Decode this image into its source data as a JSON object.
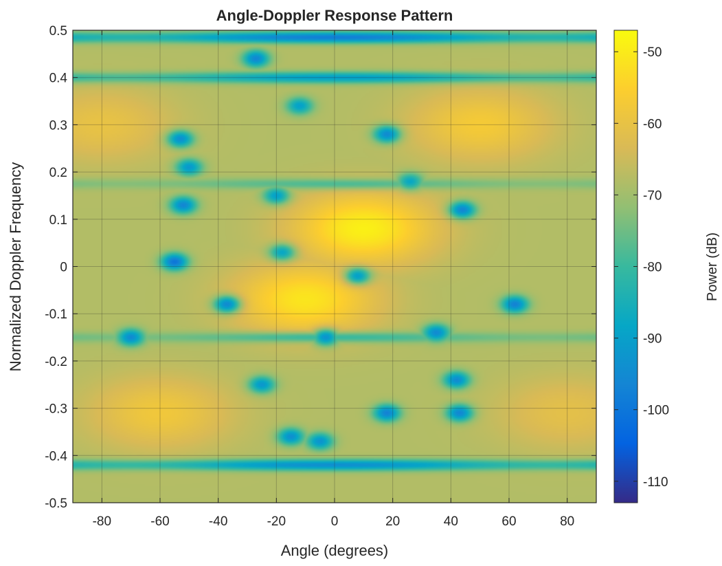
{
  "chart_data": {
    "type": "heatmap",
    "title": "Angle-Doppler Response Pattern",
    "xlabel": "Angle (degrees)",
    "ylabel": "Normalized Doppler Frequency",
    "xlim": [
      -90,
      90
    ],
    "ylim": [
      -0.5,
      0.5
    ],
    "xticks": [
      -80,
      -60,
      -40,
      -20,
      0,
      20,
      40,
      60,
      80
    ],
    "yticks": [
      0.5,
      0.4,
      0.3,
      0.2,
      0.1,
      0,
      -0.1,
      -0.2,
      -0.3,
      -0.4,
      -0.5
    ],
    "xtick_labels": [
      "-80",
      "-60",
      "-40",
      "-20",
      "0",
      "20",
      "40",
      "60",
      "80"
    ],
    "ytick_labels": [
      "0.5",
      "0.4",
      "0.3",
      "0.2",
      "0.1",
      "0",
      "-0.1",
      "-0.2",
      "-0.3",
      "-0.4",
      "-0.5"
    ],
    "grid": true,
    "colorbar": {
      "label": "Power (dB)",
      "range": [
        -113,
        -47
      ],
      "ticks": [
        -50,
        -60,
        -70,
        -80,
        -90,
        -100,
        -110
      ],
      "tick_labels": [
        "-50",
        "-60",
        "-70",
        "-80",
        "-90",
        "-100",
        "-110"
      ],
      "colormap": "parula",
      "colors": [
        "#352a87",
        "#0363e1",
        "#1485d4",
        "#06a7c6",
        "#38b99e",
        "#92bf73",
        "#d9ba56",
        "#fcce2e",
        "#f9fb0e"
      ]
    },
    "pattern": {
      "background_db": -68,
      "peaks": [
        {
          "angle": 10,
          "doppler": 0.08,
          "db": -49
        },
        {
          "angle": -10,
          "doppler": -0.07,
          "db": -51
        },
        {
          "angle": 50,
          "doppler": 0.3,
          "db": -57
        },
        {
          "angle": -60,
          "doppler": -0.31,
          "db": -58
        },
        {
          "angle": -80,
          "doppler": 0.3,
          "db": -60
        },
        {
          "angle": 80,
          "doppler": -0.31,
          "db": -61
        }
      ],
      "nulls": [
        {
          "angle": -55,
          "doppler": 0.01,
          "db": -100
        },
        {
          "angle": -52,
          "doppler": 0.13,
          "db": -96
        },
        {
          "angle": -53,
          "doppler": 0.27,
          "db": -94
        },
        {
          "angle": -50,
          "doppler": 0.21,
          "db": -92
        },
        {
          "angle": 18,
          "doppler": 0.28,
          "db": -95
        },
        {
          "angle": 44,
          "doppler": 0.12,
          "db": -96
        },
        {
          "angle": 62,
          "doppler": -0.08,
          "db": -97
        },
        {
          "angle": -37,
          "doppler": -0.08,
          "db": -95
        },
        {
          "angle": -70,
          "doppler": -0.15,
          "db": -95
        },
        {
          "angle": -3,
          "doppler": -0.15,
          "db": -93
        },
        {
          "angle": 35,
          "doppler": -0.14,
          "db": -95
        },
        {
          "angle": 18,
          "doppler": -0.31,
          "db": -97
        },
        {
          "angle": 43,
          "doppler": -0.31,
          "db": -96
        },
        {
          "angle": 42,
          "doppler": -0.24,
          "db": -95
        },
        {
          "angle": -27,
          "doppler": 0.44,
          "db": -96
        },
        {
          "angle": -15,
          "doppler": -0.36,
          "db": -94
        },
        {
          "angle": -5,
          "doppler": -0.37,
          "db": -93
        },
        {
          "angle": -20,
          "doppler": 0.15,
          "db": -90
        },
        {
          "angle": 8,
          "doppler": -0.02,
          "db": -90
        },
        {
          "angle": -18,
          "doppler": 0.03,
          "db": -88
        },
        {
          "angle": -12,
          "doppler": 0.34,
          "db": -90
        },
        {
          "angle": 26,
          "doppler": 0.18,
          "db": -88
        },
        {
          "angle": -25,
          "doppler": -0.25,
          "db": -92
        }
      ],
      "null_bands": [
        {
          "doppler": 0.485,
          "db": -98
        },
        {
          "doppler": 0.4,
          "db": -90
        },
        {
          "doppler": -0.42,
          "db": -94
        },
        {
          "doppler": 0.175,
          "db": -78
        },
        {
          "doppler": -0.15,
          "db": -80
        }
      ]
    }
  }
}
